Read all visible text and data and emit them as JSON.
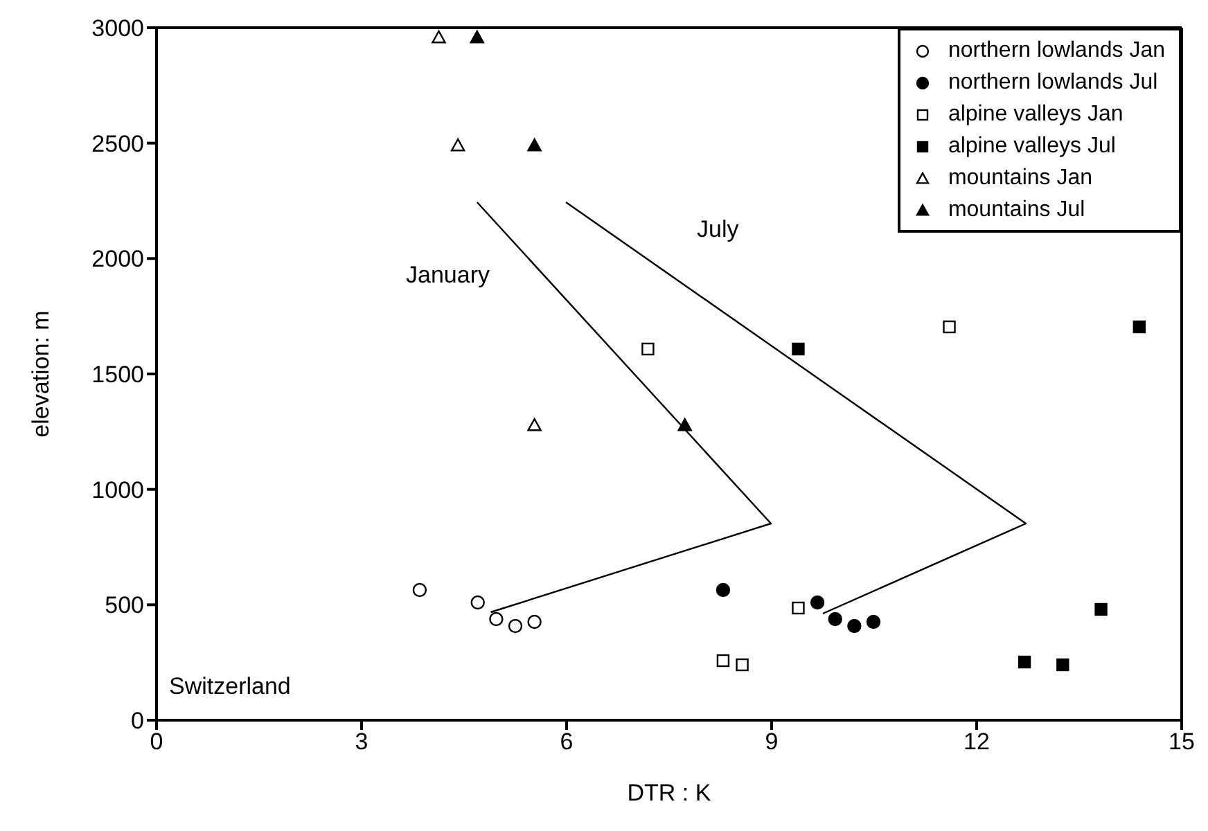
{
  "chart_data": {
    "type": "scatter",
    "xlabel": "DTR : K",
    "ylabel": "elevation: m",
    "xlim": [
      0,
      15
    ],
    "xticks": [
      0,
      3,
      6,
      9,
      12,
      15
    ],
    "ylim": [
      0,
      3000
    ],
    "yticks": [
      0,
      500,
      1000,
      1500,
      2000,
      2500,
      3000
    ],
    "legend": "top right",
    "series": [
      {
        "name": "northern lowlands Jan",
        "color": "#ffffff",
        "marker": "circle",
        "x": [
          3.85,
          4.7,
          4.97,
          5.25,
          5.53
        ],
        "values": [
          564,
          510,
          438,
          408,
          426
        ]
      },
      {
        "name": "northern lowlands Jul",
        "color": "#000000",
        "marker": "circle",
        "x": [
          8.29,
          9.67,
          9.93,
          10.21,
          10.49
        ],
        "values": [
          564,
          510,
          438,
          408,
          426
        ]
      },
      {
        "name": "alpine valleys Jan",
        "color": "#ffffff",
        "marker": "square",
        "x": [
          7.19,
          11.6,
          9.39,
          8.29,
          8.57
        ],
        "values": [
          1608,
          1704,
          486,
          258,
          240
        ]
      },
      {
        "name": "alpine valleys Jul",
        "color": "#000000",
        "marker": "square",
        "x": [
          9.39,
          14.38,
          13.82,
          12.7,
          13.26
        ],
        "values": [
          1608,
          1704,
          480,
          252,
          240
        ]
      },
      {
        "name": "mountains Jan",
        "color": "#ffffff",
        "marker": "triangle",
        "x": [
          4.13,
          4.41,
          5.53
        ],
        "values": [
          2958,
          2490,
          1278
        ]
      },
      {
        "name": "mountains Jul",
        "color": "#000000",
        "marker": "triangle",
        "x": [
          4.69,
          5.53,
          7.73
        ],
        "values": [
          2958,
          2490,
          1278
        ]
      },
      {
        "type": "line",
        "color": "#000000",
        "marker": "none",
        "x": [
          4.69,
          8.99,
          4.89
        ],
        "values": [
          2244,
          852,
          468
        ]
      },
      {
        "type": "line",
        "color": "#000000",
        "marker": "none",
        "x": [
          5.99,
          12.72,
          9.75
        ],
        "values": [
          2244,
          852,
          462
        ]
      }
    ],
    "annotations": [
      "January",
      "July",
      "Switzerland"
    ]
  }
}
